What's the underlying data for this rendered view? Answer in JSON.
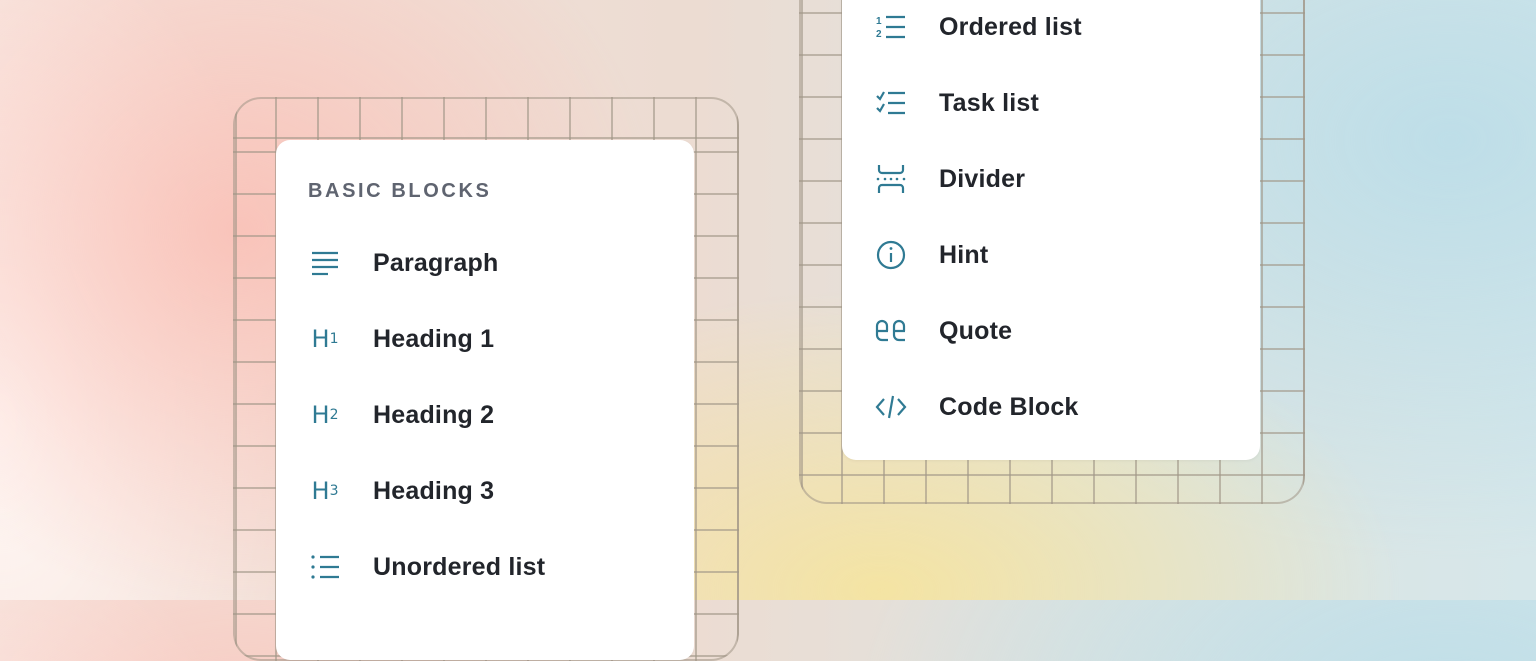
{
  "left_panel": {
    "section_title": "BASIC BLOCKS",
    "items": [
      {
        "label": "Paragraph",
        "icon": "paragraph-icon"
      },
      {
        "label": "Heading 1",
        "icon": "heading-1-icon",
        "sub": "1"
      },
      {
        "label": "Heading 2",
        "icon": "heading-2-icon",
        "sub": "2"
      },
      {
        "label": "Heading 3",
        "icon": "heading-3-icon",
        "sub": "3"
      },
      {
        "label": "Unordered list",
        "icon": "unordered-list-icon"
      }
    ]
  },
  "right_panel": {
    "items": [
      {
        "label": "Ordered list",
        "icon": "ordered-list-icon"
      },
      {
        "label": "Task list",
        "icon": "task-list-icon"
      },
      {
        "label": "Divider",
        "icon": "divider-icon"
      },
      {
        "label": "Hint",
        "icon": "info-icon"
      },
      {
        "label": "Quote",
        "icon": "quote-icon"
      },
      {
        "label": "Code Block",
        "icon": "code-icon"
      }
    ]
  },
  "colors": {
    "icon": "#2f7a93",
    "text": "#22252b",
    "section": "#5f6470"
  }
}
